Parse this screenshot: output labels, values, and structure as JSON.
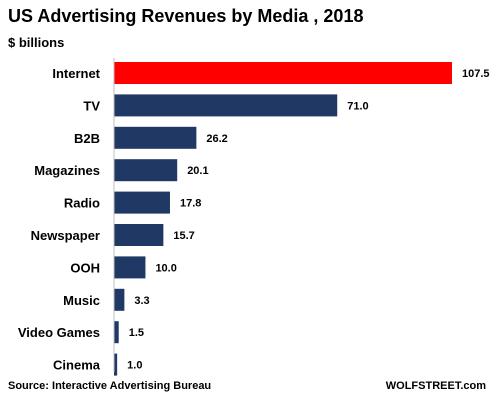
{
  "chart_data": {
    "type": "bar",
    "orientation": "horizontal",
    "title": "US Advertising Revenues by Media , 2018",
    "subtitle": "$ billions",
    "categories": [
      "Internet",
      "TV",
      "B2B",
      "Magazines",
      "Radio",
      "Newspaper",
      "OOH",
      "Music",
      "Video Games",
      "Cinema"
    ],
    "values": [
      107.5,
      71.0,
      26.2,
      20.1,
      17.8,
      15.7,
      10.0,
      3.3,
      1.5,
      1.0
    ],
    "value_labels": [
      "107.5",
      "71.0",
      "26.2",
      "20.1",
      "17.8",
      "15.7",
      "10.0",
      "3.3",
      "1.5",
      "1.0"
    ],
    "highlight_category": "Internet",
    "colors": {
      "highlight": "#ff0000",
      "bar": "#1f3864"
    },
    "xlim": [
      0,
      110
    ],
    "xlabel": "",
    "ylabel": "",
    "grid": false,
    "legend": "none"
  },
  "footer": {
    "source": "Source: Interactive Advertising Bureau",
    "credit": "WOLFSTREET.com"
  }
}
